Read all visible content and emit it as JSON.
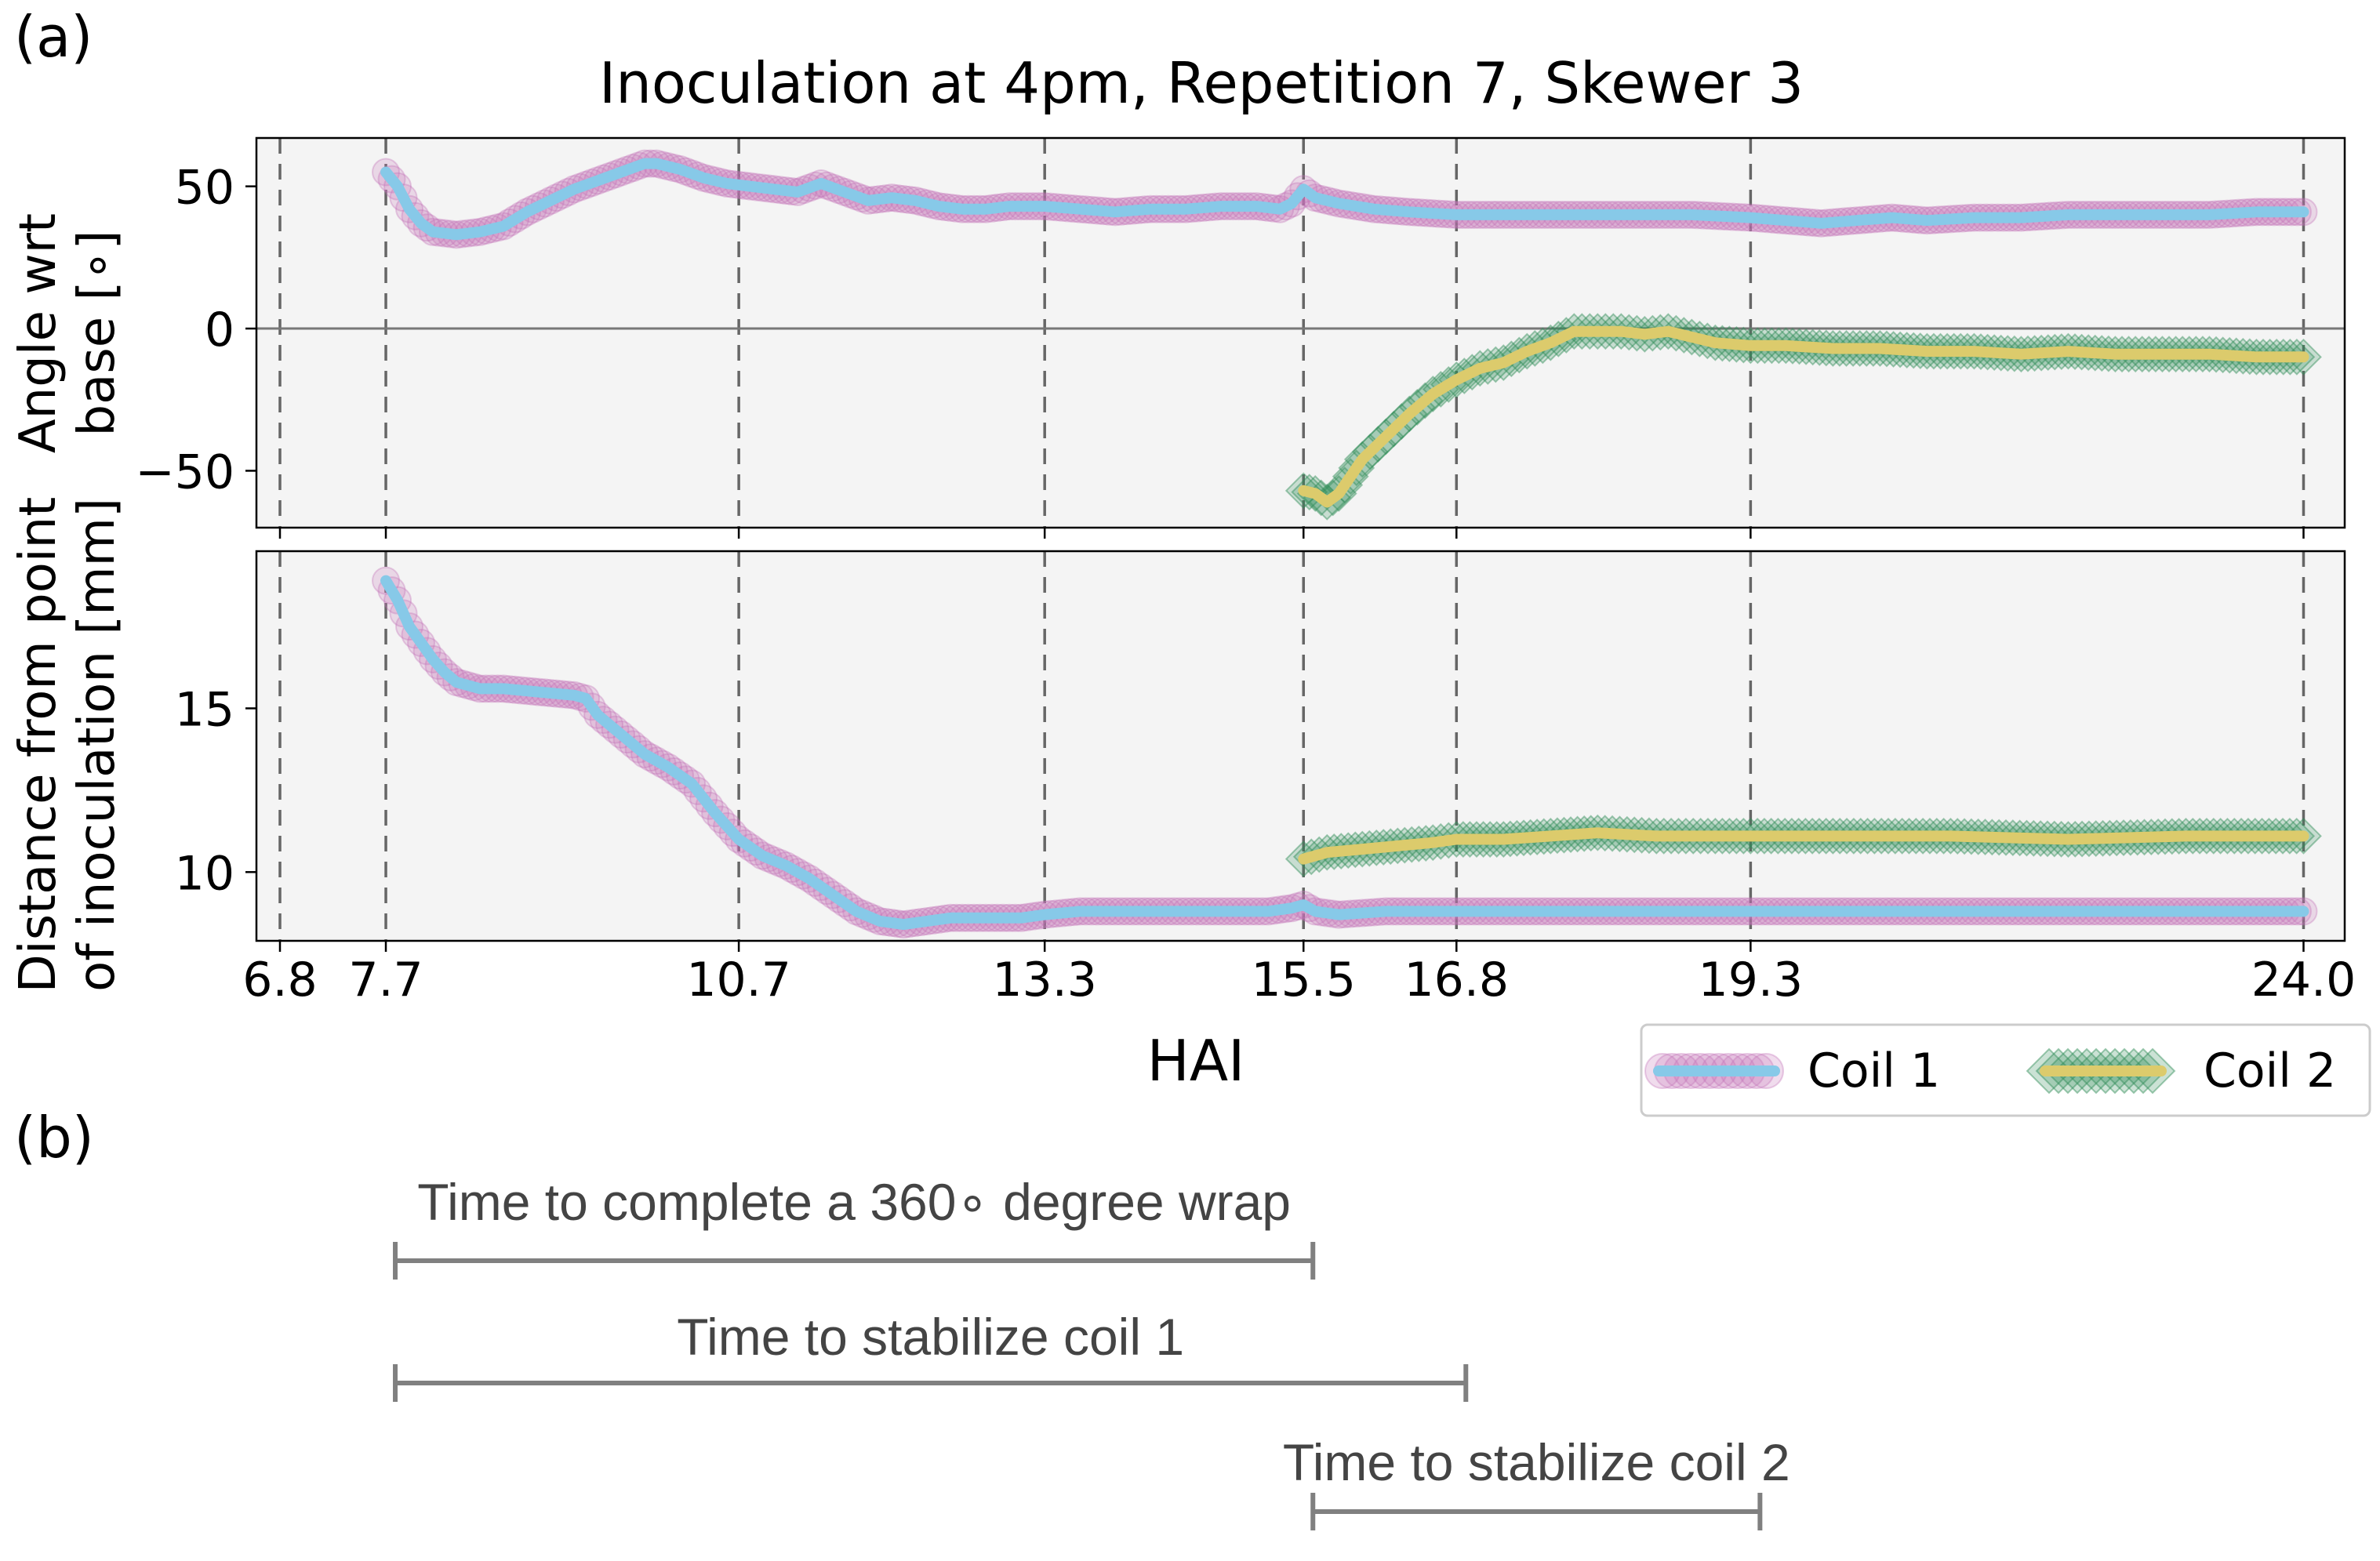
{
  "panel_labels": {
    "a": "(a)",
    "b": "(b)"
  },
  "chart_data": [
    {
      "type": "line",
      "title": "Inoculation at 4pm, Repetition 7, Skewer 3",
      "ylabel_line1": "Angle wrt",
      "ylabel_line2": "base [∘]",
      "xlim": [
        6.6,
        24.35
      ],
      "ylim": [
        -70,
        67
      ],
      "yticks": [
        50,
        0,
        -50
      ],
      "ytick_labels": [
        "50",
        "0",
        "−50"
      ],
      "zero_line": true,
      "vlines": [
        6.8,
        7.7,
        10.7,
        13.3,
        15.5,
        16.8,
        19.3,
        24.0
      ],
      "series": [
        {
          "name": "Coil 1",
          "points": [
            [
              7.7,
              55
            ],
            [
              7.8,
              50
            ],
            [
              7.9,
              42
            ],
            [
              8.0,
              37
            ],
            [
              8.1,
              34
            ],
            [
              8.3,
              33
            ],
            [
              8.5,
              34
            ],
            [
              8.7,
              36
            ],
            [
              8.9,
              41
            ],
            [
              9.1,
              45
            ],
            [
              9.3,
              49
            ],
            [
              9.5,
              52
            ],
            [
              9.7,
              55
            ],
            [
              9.9,
              58
            ],
            [
              10.0,
              58
            ],
            [
              10.2,
              56
            ],
            [
              10.4,
              53
            ],
            [
              10.6,
              51
            ],
            [
              10.8,
              50
            ],
            [
              11.0,
              49
            ],
            [
              11.2,
              48
            ],
            [
              11.4,
              51
            ],
            [
              11.6,
              48
            ],
            [
              11.8,
              45
            ],
            [
              12.0,
              46
            ],
            [
              12.2,
              45
            ],
            [
              12.4,
              43
            ],
            [
              12.6,
              42
            ],
            [
              12.8,
              42
            ],
            [
              13.0,
              43
            ],
            [
              13.3,
              43
            ],
            [
              13.6,
              42
            ],
            [
              13.9,
              41
            ],
            [
              14.2,
              42
            ],
            [
              14.5,
              42
            ],
            [
              14.8,
              43
            ],
            [
              15.1,
              43
            ],
            [
              15.3,
              42
            ],
            [
              15.4,
              44
            ],
            [
              15.5,
              49
            ],
            [
              15.6,
              46
            ],
            [
              15.8,
              44
            ],
            [
              16.1,
              42
            ],
            [
              16.4,
              41
            ],
            [
              16.8,
              40
            ],
            [
              17.3,
              40
            ],
            [
              17.8,
              40
            ],
            [
              18.3,
              40
            ],
            [
              18.8,
              40
            ],
            [
              19.3,
              39
            ],
            [
              19.6,
              38
            ],
            [
              19.9,
              37
            ],
            [
              20.2,
              38
            ],
            [
              20.5,
              39
            ],
            [
              20.8,
              38
            ],
            [
              21.2,
              39
            ],
            [
              21.6,
              39
            ],
            [
              22.0,
              40
            ],
            [
              22.4,
              40
            ],
            [
              22.8,
              40
            ],
            [
              23.2,
              40
            ],
            [
              23.6,
              41
            ],
            [
              24.0,
              41
            ]
          ]
        },
        {
          "name": "Coil 2",
          "points": [
            [
              15.5,
              -57
            ],
            [
              15.6,
              -58
            ],
            [
              15.7,
              -61
            ],
            [
              15.8,
              -58
            ],
            [
              15.9,
              -52
            ],
            [
              16.0,
              -46
            ],
            [
              16.2,
              -38
            ],
            [
              16.4,
              -30
            ],
            [
              16.6,
              -23
            ],
            [
              16.8,
              -18
            ],
            [
              17.0,
              -14
            ],
            [
              17.2,
              -12
            ],
            [
              17.4,
              -8
            ],
            [
              17.6,
              -5
            ],
            [
              17.8,
              -1
            ],
            [
              18.0,
              -1
            ],
            [
              18.2,
              -1
            ],
            [
              18.4,
              -2
            ],
            [
              18.6,
              -1
            ],
            [
              18.8,
              -3
            ],
            [
              19.0,
              -5
            ],
            [
              19.3,
              -6
            ],
            [
              19.6,
              -6
            ],
            [
              20.0,
              -7
            ],
            [
              20.4,
              -7
            ],
            [
              20.8,
              -8
            ],
            [
              21.2,
              -8
            ],
            [
              21.6,
              -9
            ],
            [
              22.0,
              -8
            ],
            [
              22.4,
              -9
            ],
            [
              22.8,
              -9
            ],
            [
              23.2,
              -9
            ],
            [
              23.6,
              -10
            ],
            [
              24.0,
              -10
            ]
          ]
        }
      ]
    },
    {
      "type": "line",
      "ylabel_line1": "Distance from point",
      "ylabel_line2": "of inoculation [mm]",
      "xlabel": "HAI",
      "xlim": [
        6.6,
        24.35
      ],
      "ylim": [
        7.9,
        19.8
      ],
      "yticks": [
        15,
        10
      ],
      "ytick_labels": [
        "15",
        "10"
      ],
      "xticks": [
        6.8,
        7.7,
        10.7,
        13.3,
        15.5,
        16.8,
        19.3,
        24.0
      ],
      "xtick_labels": [
        "6.8",
        "7.7",
        "10.7",
        "13.3",
        "15.5",
        "16.8",
        "19.3",
        "24.0"
      ],
      "vlines": [
        6.8,
        7.7,
        10.7,
        13.3,
        15.5,
        16.8,
        19.3,
        24.0
      ],
      "series": [
        {
          "name": "Coil 1",
          "points": [
            [
              7.7,
              18.9
            ],
            [
              7.8,
              18.3
            ],
            [
              7.9,
              17.5
            ],
            [
              8.0,
              17.0
            ],
            [
              8.1,
              16.5
            ],
            [
              8.2,
              16.1
            ],
            [
              8.3,
              15.8
            ],
            [
              8.5,
              15.6
            ],
            [
              8.7,
              15.6
            ],
            [
              9.0,
              15.5
            ],
            [
              9.3,
              15.4
            ],
            [
              9.4,
              15.3
            ],
            [
              9.5,
              14.8
            ],
            [
              9.7,
              14.2
            ],
            [
              9.9,
              13.6
            ],
            [
              10.1,
              13.2
            ],
            [
              10.3,
              12.7
            ],
            [
              10.5,
              11.8
            ],
            [
              10.7,
              11.0
            ],
            [
              10.9,
              10.5
            ],
            [
              11.1,
              10.2
            ],
            [
              11.3,
              9.8
            ],
            [
              11.5,
              9.3
            ],
            [
              11.7,
              8.8
            ],
            [
              11.9,
              8.5
            ],
            [
              12.1,
              8.4
            ],
            [
              12.3,
              8.5
            ],
            [
              12.5,
              8.6
            ],
            [
              12.8,
              8.6
            ],
            [
              13.1,
              8.6
            ],
            [
              13.3,
              8.7
            ],
            [
              13.6,
              8.8
            ],
            [
              14.0,
              8.8
            ],
            [
              14.4,
              8.8
            ],
            [
              14.8,
              8.8
            ],
            [
              15.2,
              8.8
            ],
            [
              15.4,
              8.9
            ],
            [
              15.5,
              9.0
            ],
            [
              15.6,
              8.8
            ],
            [
              15.8,
              8.7
            ],
            [
              16.2,
              8.8
            ],
            [
              16.8,
              8.8
            ],
            [
              17.5,
              8.8
            ],
            [
              18.5,
              8.8
            ],
            [
              19.3,
              8.8
            ],
            [
              20.5,
              8.8
            ],
            [
              21.5,
              8.8
            ],
            [
              22.5,
              8.8
            ],
            [
              23.5,
              8.8
            ],
            [
              24.0,
              8.8
            ]
          ]
        },
        {
          "name": "Coil 2",
          "points": [
            [
              15.5,
              10.4
            ],
            [
              15.7,
              10.6
            ],
            [
              16.0,
              10.7
            ],
            [
              16.3,
              10.8
            ],
            [
              16.6,
              10.9
            ],
            [
              16.8,
              11.0
            ],
            [
              17.2,
              11.0
            ],
            [
              17.6,
              11.1
            ],
            [
              18.0,
              11.2
            ],
            [
              18.5,
              11.1
            ],
            [
              19.0,
              11.1
            ],
            [
              19.3,
              11.1
            ],
            [
              20.0,
              11.1
            ],
            [
              21.0,
              11.1
            ],
            [
              22.0,
              11.0
            ],
            [
              23.0,
              11.1
            ],
            [
              24.0,
              11.1
            ]
          ]
        }
      ]
    },
    {
      "type": "timeline",
      "xlim": [
        6.6,
        24.35
      ],
      "intervals": [
        {
          "label": "Time to complete a 360∘ degree wrap",
          "start": 7.7,
          "end": 15.5
        },
        {
          "label": "Time to stabilize coil 1",
          "start": 7.7,
          "end": 16.8
        },
        {
          "label": "Time to stabilize coil 2",
          "start": 15.5,
          "end": 19.3
        }
      ]
    }
  ],
  "legend": {
    "entries": [
      {
        "label": "Coil 1",
        "line_color": "#87c9e8",
        "marker_color": "#c472b6"
      },
      {
        "label": "Coil 2",
        "line_color": "#dccb6c",
        "marker_color": "#2e8b57"
      }
    ]
  },
  "colors": {
    "coil1_line": "#87c9e8",
    "coil1_marker": "#c472b6",
    "coil2_line": "#dccb6c",
    "coil2_marker": "#2e8b57",
    "axes_bg": "#f4f4f4",
    "vline": "#666666",
    "interval": "#808080"
  }
}
